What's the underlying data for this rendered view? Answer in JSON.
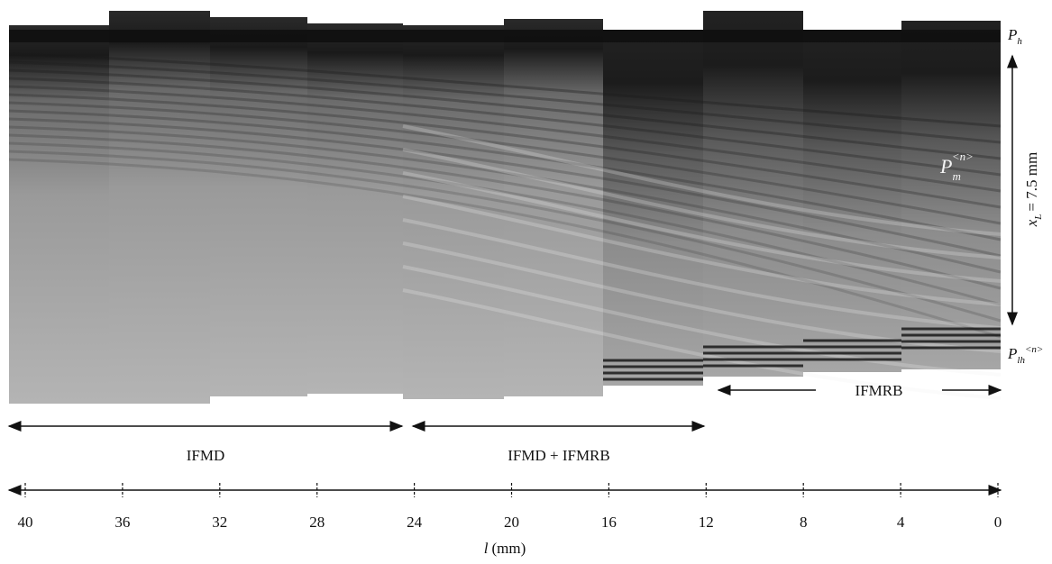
{
  "figure": {
    "labels": {
      "top": {
        "symbol": "P",
        "sub": "h"
      },
      "middle": {
        "symbol": "P",
        "sub": "m",
        "sup": "<n>"
      },
      "bottom": {
        "symbol": "P",
        "sub": "lh",
        "sup": "<n>"
      },
      "height": {
        "symbol": "x",
        "sub": "L",
        "text": "= 7.5 mm"
      }
    },
    "regions": [
      "IFMD",
      "IFMD + IFMRB",
      "IFMRB"
    ],
    "axis": {
      "ticks": [
        "40",
        "36",
        "32",
        "28",
        "24",
        "20",
        "16",
        "12",
        "8",
        "4",
        "0"
      ],
      "symbol": "l",
      "unit": "(mm)"
    }
  }
}
